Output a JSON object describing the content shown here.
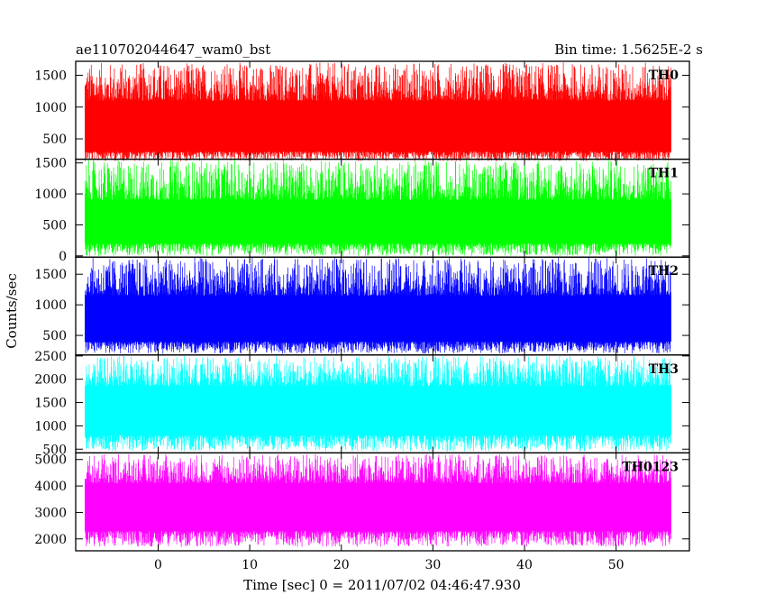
{
  "chart_data": {
    "type": "line",
    "title": "ae110702044647_wam0_bst",
    "subtitle": "Bin time: 1.5625E-2 s",
    "xlabel": "Time [sec] 0 = 2011/07/02 04:46:47.930",
    "ylabel": "Counts/sec",
    "xlim": [
      -9,
      58
    ],
    "x_range": [
      -8,
      56
    ],
    "xticks": [
      "0",
      "10",
      "20",
      "30",
      "40",
      "50"
    ],
    "xtick_values": [
      0,
      10,
      20,
      30,
      40,
      50
    ],
    "grid": false,
    "panels": [
      {
        "name": "TH0",
        "color": "#ff0000",
        "ylim": [
          180,
          1720
        ],
        "yticks": [
          "500",
          "1000",
          "1500"
        ],
        "ytick_values": [
          500,
          1000,
          1500
        ],
        "base_low": 300,
        "base_high": 1100,
        "spike_low": 150,
        "spike_high": 1700
      },
      {
        "name": "TH1",
        "color": "#00ff00",
        "ylim": [
          -20,
          1560
        ],
        "yticks": [
          "0",
          "500",
          "1000",
          "1500"
        ],
        "ytick_values": [
          0,
          500,
          1000,
          1500
        ],
        "base_low": 200,
        "base_high": 900,
        "spike_low": 0,
        "spike_high": 1550
      },
      {
        "name": "TH2",
        "color": "#0000ff",
        "ylim": [
          180,
          1780
        ],
        "yticks": [
          "500",
          "1000",
          "1500"
        ],
        "ytick_values": [
          500,
          1000,
          1500
        ],
        "base_low": 400,
        "base_high": 1150,
        "spike_low": 200,
        "spike_high": 1770
      },
      {
        "name": "TH3",
        "color": "#00ffff",
        "ylim": [
          420,
          2520
        ],
        "yticks": [
          "500",
          "1000",
          "1500",
          "2000",
          "2500"
        ],
        "ytick_values": [
          500,
          1000,
          1500,
          2000,
          2500
        ],
        "base_low": 800,
        "base_high": 1850,
        "spike_low": 450,
        "spike_high": 2500
      },
      {
        "name": "TH0123",
        "color": "#ff00ff",
        "ylim": [
          1550,
          5250
        ],
        "yticks": [
          "2000",
          "3000",
          "4000",
          "5000"
        ],
        "ytick_values": [
          2000,
          3000,
          4000,
          5000
        ],
        "base_low": 2300,
        "base_high": 4100,
        "spike_low": 1700,
        "spike_high": 5200
      }
    ]
  }
}
